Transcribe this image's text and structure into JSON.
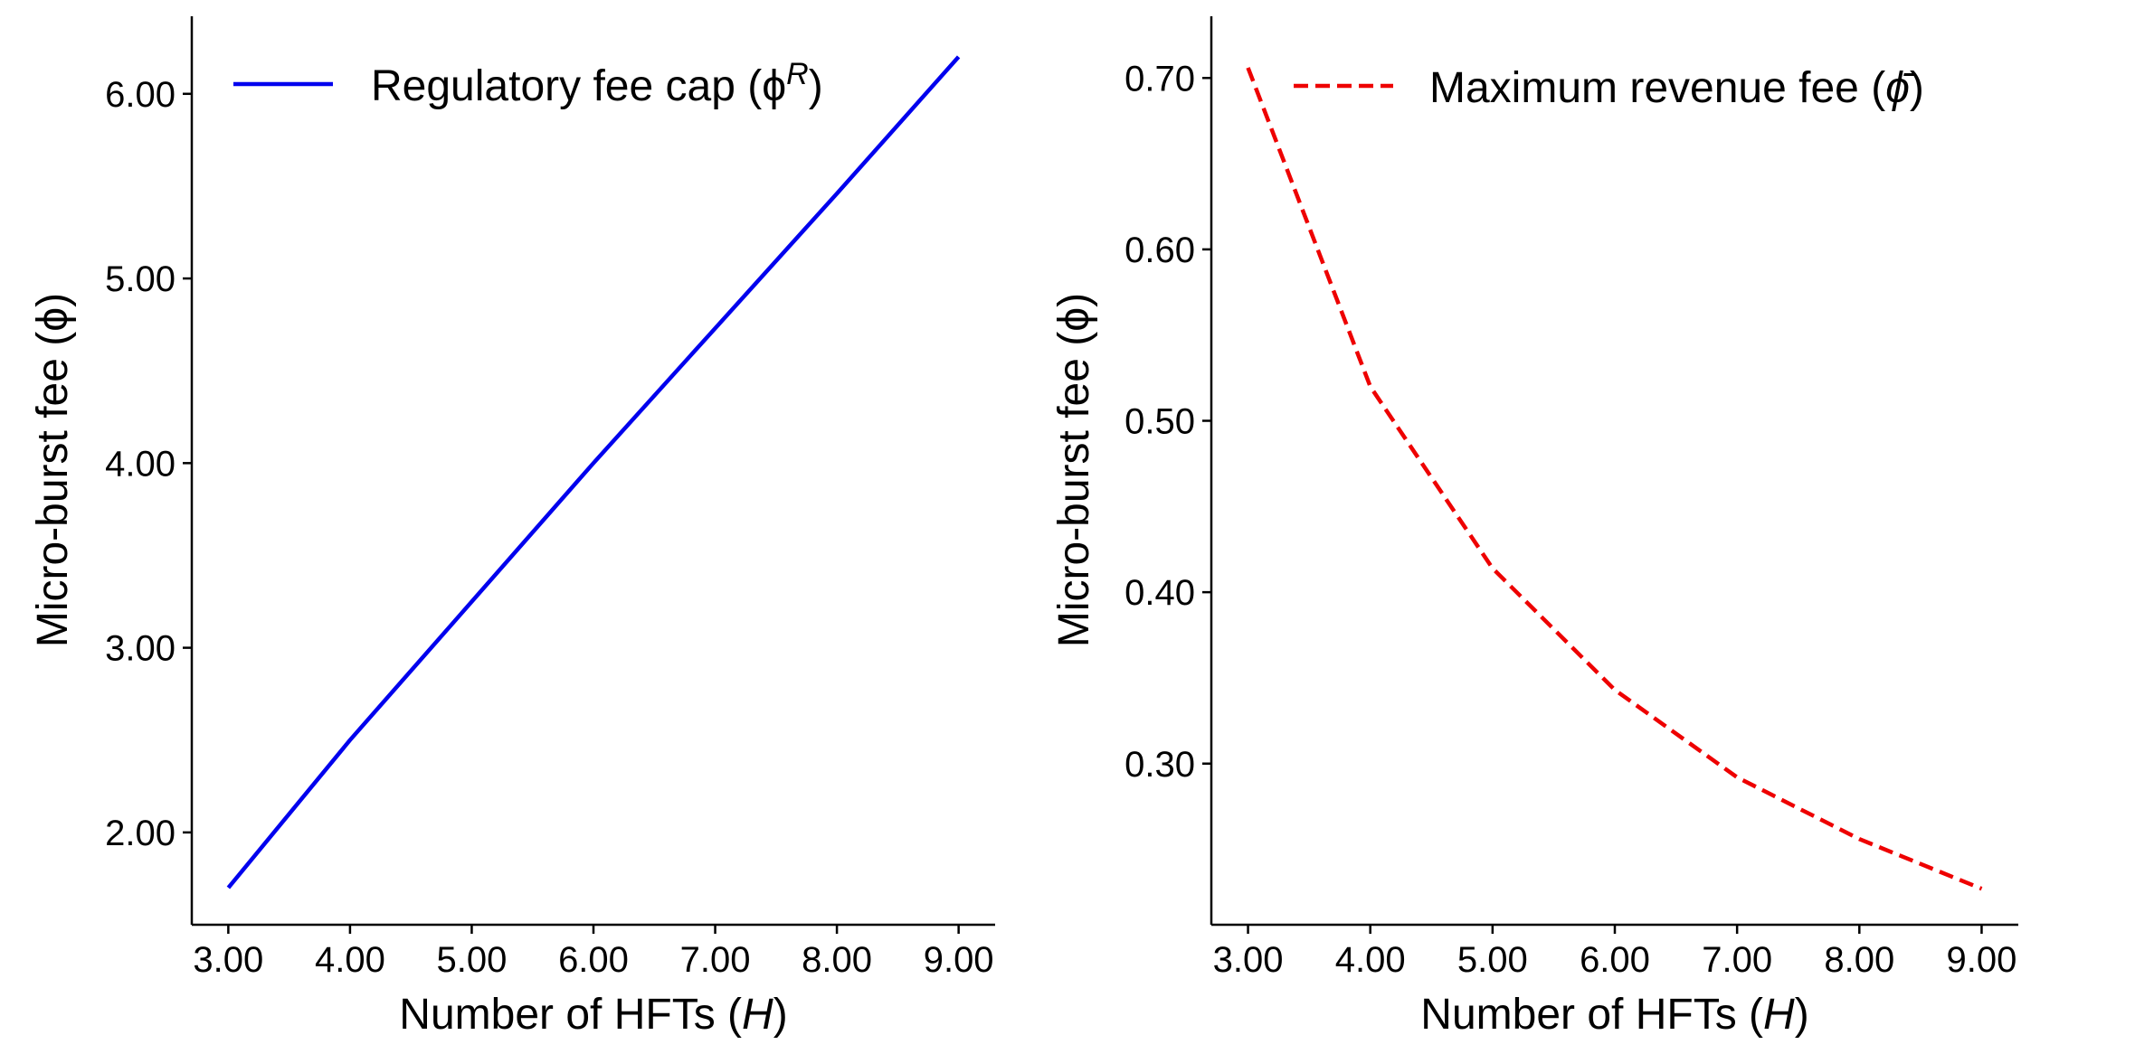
{
  "chart_data": [
    {
      "type": "line",
      "id": "left",
      "x": [
        3,
        4,
        5,
        6,
        7,
        8,
        9
      ],
      "series": [
        {
          "name": "Regulatory fee cap",
          "legend_label": "Regulatory fee cap (ϕ",
          "legend_sup": "R",
          "legend_close": ")",
          "values": [
            1.7,
            2.5,
            3.25,
            4.0,
            4.73,
            5.46,
            6.2
          ],
          "color": "#0000ee",
          "style": "solid"
        }
      ],
      "xlabel": "Number of HFTs (",
      "xlabel_var": "H",
      "xlabel_close": ")",
      "ylabel": "Micro-burst fee (ϕ)",
      "xlim": [
        2.7,
        9.3
      ],
      "ylim": [
        1.5,
        6.42
      ],
      "xticks": [
        "3.00",
        "4.00",
        "5.00",
        "6.00",
        "7.00",
        "8.00",
        "9.00"
      ],
      "xtick_values": [
        3,
        4,
        5,
        6,
        7,
        8,
        9
      ],
      "yticks": [
        "2.00",
        "3.00",
        "4.00",
        "5.00",
        "6.00"
      ],
      "ytick_values": [
        2,
        3,
        4,
        5,
        6
      ],
      "legend_position": "top-left"
    },
    {
      "type": "line",
      "id": "right",
      "x": [
        3,
        4,
        5,
        6,
        7,
        8,
        9
      ],
      "series": [
        {
          "name": "Maximum revenue fee",
          "legend_label": "Maximum revenue fee (",
          "legend_var": "ϕ̄",
          "legend_close": ")",
          "values": [
            0.706,
            0.52,
            0.414,
            0.343,
            0.292,
            0.256,
            0.227
          ],
          "color": "#ee0000",
          "style": "dashed"
        }
      ],
      "xlabel": "Number of HFTs (",
      "xlabel_var": "H",
      "xlabel_close": ")",
      "ylabel": "Micro-burst fee (ϕ)",
      "xlim": [
        2.7,
        9.3
      ],
      "ylim": [
        0.206,
        0.736
      ],
      "xticks": [
        "3.00",
        "4.00",
        "5.00",
        "6.00",
        "7.00",
        "8.00",
        "9.00"
      ],
      "xtick_values": [
        3,
        4,
        5,
        6,
        7,
        8,
        9
      ],
      "yticks": [
        "0.30",
        "0.40",
        "0.50",
        "0.60",
        "0.70"
      ],
      "ytick_values": [
        0.3,
        0.4,
        0.5,
        0.6,
        0.7
      ],
      "legend_position": "top-right"
    }
  ]
}
